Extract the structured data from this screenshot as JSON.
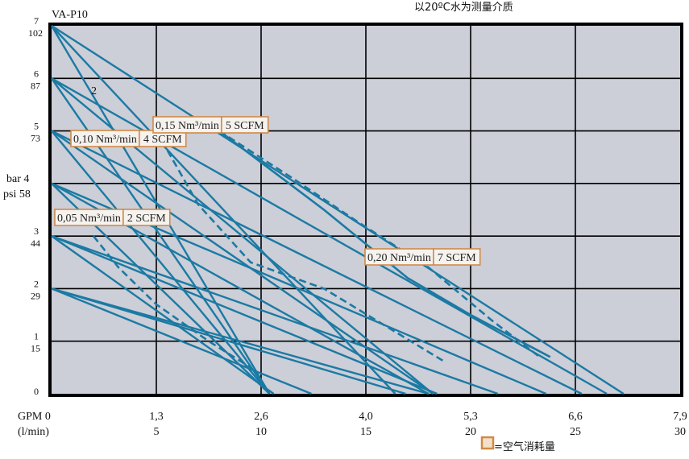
{
  "chart_data": {
    "type": "line",
    "title": "VA-P10",
    "note": "以20ºC水为测量介质",
    "legend_text": "=空气消耗量",
    "y_left_bar_label": "bar 4",
    "y_left_psi_label": "psi 58",
    "x_gpm_label": "GPM 0",
    "x_lmin_label": "(l/min)",
    "xlim": [
      0,
      30
    ],
    "ylim": [
      0,
      7
    ],
    "x_ticks_lmin": [
      "5",
      "10",
      "15",
      "20",
      "25",
      "30"
    ],
    "x_ticks_gpm": [
      "1,3",
      "2,6",
      "4,0",
      "5,3",
      "6,6",
      "7,9"
    ],
    "y_ticks": [
      {
        "bar": "0",
        "psi": ""
      },
      {
        "bar": "1",
        "psi": "15"
      },
      {
        "bar": "2",
        "psi": "29"
      },
      {
        "bar": "3",
        "psi": "44"
      },
      {
        "bar": "5",
        "psi": "73"
      },
      {
        "bar": "6",
        "psi": "87"
      },
      {
        "bar": "7",
        "psi": "102"
      }
    ],
    "curve_number_label": "2",
    "pressure_curves": [
      {
        "x": [
          0,
          16.4
        ],
        "y": [
          7,
          0
        ]
      },
      {
        "x": [
          0,
          18.2
        ],
        "y": [
          6,
          0
        ]
      },
      {
        "x": [
          0,
          18.2
        ],
        "y": [
          5,
          0
        ]
      },
      {
        "x": [
          0,
          18.0
        ],
        "y": [
          4,
          0
        ]
      },
      {
        "x": [
          0,
          18.4
        ],
        "y": [
          3,
          0
        ]
      },
      {
        "x": [
          0,
          18.0
        ],
        "y": [
          2,
          0
        ]
      },
      {
        "x": [
          0,
          10.4
        ],
        "y": [
          7,
          0
        ]
      },
      {
        "x": [
          0,
          10.4
        ],
        "y": [
          6,
          0
        ]
      },
      {
        "x": [
          0,
          10.4
        ],
        "y": [
          5,
          0
        ]
      },
      {
        "x": [
          0,
          10.4
        ],
        "y": [
          4,
          0
        ]
      },
      {
        "x": [
          0,
          10.6
        ],
        "y": [
          3,
          0
        ]
      },
      {
        "x": [
          0,
          12.4
        ],
        "y": [
          2,
          0
        ]
      },
      {
        "x": [
          0,
          27.3
        ],
        "y": [
          7,
          0
        ]
      },
      {
        "x": [
          0,
          26.5
        ],
        "y": [
          6,
          0
        ]
      },
      {
        "x": [
          0,
          25.3
        ],
        "y": [
          5,
          0
        ]
      },
      {
        "x": [
          0,
          23.6
        ],
        "y": [
          4,
          0
        ]
      },
      {
        "x": [
          0,
          21.3
        ],
        "y": [
          3,
          0
        ]
      },
      {
        "x": [
          0,
          16.9
        ],
        "y": [
          2,
          0
        ]
      }
    ],
    "air_consumption_curves": [
      {
        "label_nm": "0,05 Nm³/min",
        "label_scfm": "2 SCFM",
        "dashed": true,
        "x": [
          2.0,
          3.2,
          5.0,
          7.5,
          9.5
        ],
        "y": [
          3.0,
          2.4,
          1.7,
          1.0,
          0.5
        ]
      },
      {
        "label_nm": "0,10 Nm³/min",
        "label_scfm": "4 SCFM",
        "dashed": true,
        "x": [
          5.0,
          7.0,
          9.5,
          13.0,
          18.8
        ],
        "y": [
          5.0,
          3.6,
          2.5,
          2.0,
          0.6
        ]
      },
      {
        "label_nm": "0,15 Nm³/min",
        "label_scfm": "5 SCFM",
        "dashed": true,
        "x": [
          8.0,
          11.5,
          14.5,
          18.0,
          21.0,
          23.3
        ],
        "y": [
          5.0,
          4.1,
          3.3,
          2.4,
          1.4,
          0.7
        ]
      },
      {
        "label_nm": "0,20 Nm³/min",
        "label_scfm": "7 SCFM",
        "dashed": false,
        "x": [
          8.0,
          13.0,
          17.0,
          20.0,
          23.8
        ],
        "y": [
          5.0,
          3.5,
          2.2,
          1.5,
          0.7
        ]
      }
    ]
  }
}
